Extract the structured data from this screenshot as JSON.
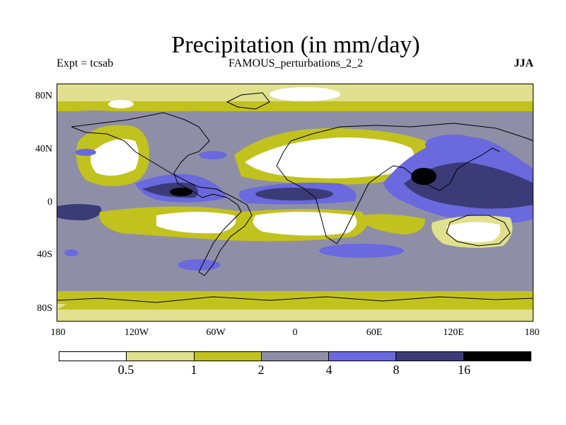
{
  "title": "Precipitation (in mm/day)",
  "experiment": "Expt = tcsab",
  "run_name": "FAMOUS_perturbations_2_2",
  "season": "JJA",
  "latitude_labels": [
    "80N",
    "40N",
    "0",
    "40S",
    "80S"
  ],
  "longitude_labels": [
    "180",
    "120W",
    "60W",
    "0",
    "60E",
    "120E",
    "180"
  ],
  "colorbar": {
    "unit": "mm/day",
    "thresholds": [
      "0.5",
      "1",
      "2",
      "4",
      "8",
      "16"
    ],
    "colors": [
      "#ffffff",
      "#e0e08e",
      "#c2c21e",
      "#8e8fa6",
      "#6a69de",
      "#3b3b78",
      "#000000"
    ]
  },
  "palette": {
    "lt05": "#ffffff",
    "b05_1": "#e0e08e",
    "b1_2": "#c2c21e",
    "b2_4": "#8e8fa6",
    "b4_8": "#6a69de",
    "b8_16": "#3b3b78",
    "gt16": "#000000"
  }
}
